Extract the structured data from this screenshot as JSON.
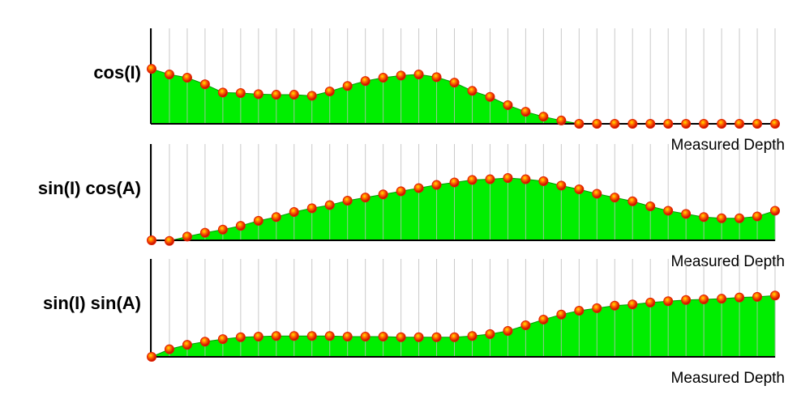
{
  "chart_data": [
    {
      "type": "area",
      "y_label": "cos(I)",
      "x_label": "Measured Depth",
      "color": "#00ee00",
      "marker_color": "#e02000",
      "ylim": [
        0,
        1.74
      ],
      "grid": true,
      "values": [
        1.0,
        0.9,
        0.84,
        0.72,
        0.57,
        0.56,
        0.54,
        0.53,
        0.53,
        0.51,
        0.59,
        0.69,
        0.78,
        0.84,
        0.88,
        0.9,
        0.85,
        0.75,
        0.6,
        0.49,
        0.34,
        0.22,
        0.13,
        0.06,
        0,
        0,
        0,
        0,
        0,
        0,
        0,
        0,
        0,
        0,
        0,
        0
      ]
    },
    {
      "type": "area",
      "y_label": "sin(I) cos(A)",
      "x_label": "Measured Depth",
      "color": "#00ee00",
      "marker_color": "#e02000",
      "ylim": [
        0,
        1.53
      ],
      "grid": true,
      "values": [
        0,
        -0.01,
        0.06,
        0.12,
        0.17,
        0.23,
        0.31,
        0.37,
        0.45,
        0.51,
        0.56,
        0.63,
        0.68,
        0.73,
        0.78,
        0.83,
        0.88,
        0.92,
        0.96,
        0.97,
        0.99,
        0.97,
        0.94,
        0.87,
        0.81,
        0.74,
        0.68,
        0.62,
        0.54,
        0.47,
        0.42,
        0.37,
        0.35,
        0.35,
        0.38,
        0.47
      ]
    },
    {
      "type": "area",
      "y_label": "sin(I) sin(A)",
      "x_label": "Measured Depth",
      "color": "#00ee00",
      "marker_color": "#e02000",
      "ylim": [
        0,
        1.55
      ],
      "grid": true,
      "values": [
        0,
        0.12,
        0.19,
        0.24,
        0.28,
        0.31,
        0.32,
        0.33,
        0.33,
        0.33,
        0.33,
        0.32,
        0.32,
        0.32,
        0.31,
        0.31,
        0.31,
        0.31,
        0.33,
        0.36,
        0.41,
        0.5,
        0.59,
        0.67,
        0.73,
        0.77,
        0.81,
        0.83,
        0.86,
        0.88,
        0.9,
        0.91,
        0.92,
        0.94,
        0.95,
        0.97
      ]
    }
  ]
}
